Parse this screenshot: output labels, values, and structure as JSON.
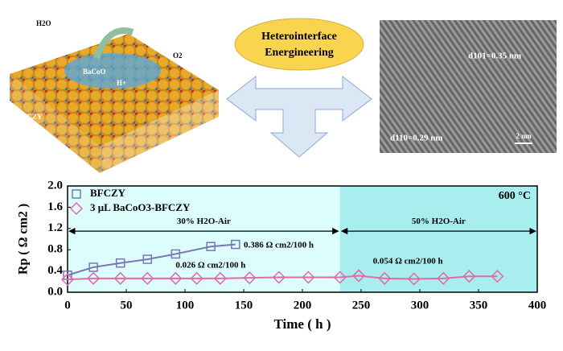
{
  "illustration": {
    "h2o": "H2O",
    "o2": "O2",
    "surface": "BaCoO",
    "proton": "H+",
    "bulk": "BFCZY",
    "concept": [
      "Heterointerface",
      "Energineering"
    ],
    "tem_d101": "d101=0.35 nm",
    "tem_d110": "d110=0.29 nm",
    "scale_bar": "2 nm"
  },
  "chart_data": {
    "type": "line",
    "x_label": "Time ( h )",
    "y_label": "Rp ( Ω cm2 )",
    "temperature": "600 °C",
    "xlim": [
      0,
      400
    ],
    "xticks": [
      0,
      50,
      100,
      150,
      200,
      250,
      300,
      350,
      400
    ],
    "ylim": [
      0,
      2
    ],
    "yticks": [
      {
        "value": 0,
        "label": "0.0"
      },
      0.4,
      0.8,
      1.2,
      1.6,
      {
        "value": 2,
        "label": "2.0"
      }
    ],
    "regions": [
      {
        "label": "30% H2O-Air",
        "xlim": [
          0,
          232
        ],
        "color": "#ddfcfc"
      },
      {
        "label": "50% H2O-Air",
        "xlim": [
          232,
          400
        ],
        "color": "#a9eeee"
      }
    ],
    "series": [
      {
        "name": "BFCZY",
        "color": "#7878b4",
        "marker": "square",
        "rate": "0.386 Ω cm2/100 h",
        "x": [
          0,
          22,
          45,
          68,
          92,
          122,
          143
        ],
        "values": [
          0.32,
          0.47,
          0.55,
          0.62,
          0.72,
          0.86,
          0.9
        ]
      },
      {
        "name": "3 μL BaCoO3-BFCZY",
        "color": "#e26aa8",
        "marker": "diamond",
        "rate": "0.026 Ω cm2/100 h",
        "rate2": "0.054 Ω cm2/100 h",
        "x": [
          0,
          22,
          45,
          68,
          92,
          110,
          130,
          155,
          180,
          205,
          232,
          248,
          270,
          295,
          320,
          342,
          366
        ],
        "values": [
          0.24,
          0.26,
          0.26,
          0.26,
          0.26,
          0.26,
          0.26,
          0.27,
          0.28,
          0.28,
          0.28,
          0.31,
          0.26,
          0.25,
          0.26,
          0.3,
          0.3
        ]
      }
    ]
  }
}
